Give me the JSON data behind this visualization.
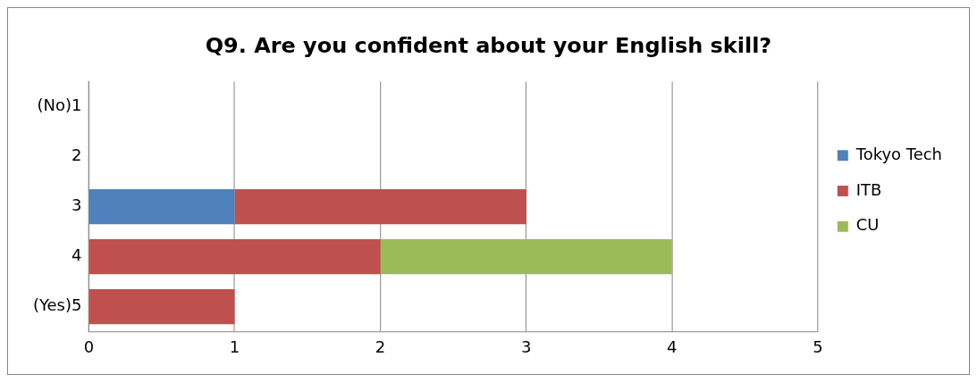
{
  "chart_data": {
    "type": "bar",
    "title": "Q9. Are you confident about your English skill?",
    "orientation": "horizontal",
    "stacked": true,
    "categories": [
      "(No)1",
      "2",
      "3",
      "4",
      "(Yes)5"
    ],
    "series": [
      {
        "name": "Tokyo Tech",
        "color": "#4f81bd",
        "values": [
          0,
          0,
          1,
          0,
          0
        ]
      },
      {
        "name": "ITB",
        "color": "#c0504d",
        "values": [
          0,
          0,
          2,
          2,
          1
        ]
      },
      {
        "name": "CU",
        "color": "#9bbb59",
        "values": [
          0,
          0,
          0,
          2,
          0
        ]
      }
    ],
    "xlim": [
      0,
      5
    ],
    "xticks": [
      0,
      1,
      2,
      3,
      4,
      5
    ],
    "grid": "x",
    "legend": "right"
  }
}
